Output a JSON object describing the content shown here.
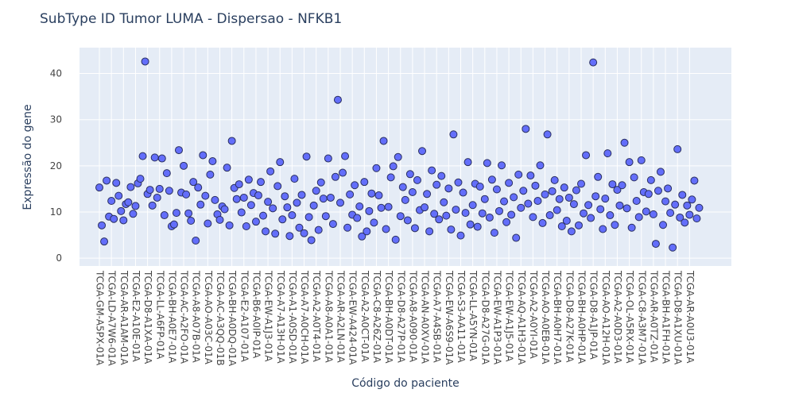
{
  "chart_data": {
    "type": "scatter",
    "title": "SubType ID Tumor LUMA - Dispersao - NFKB1",
    "x_label": "Código do paciente",
    "y_label": "Expressão do gene",
    "color": "#636efa",
    "grid": true,
    "ylim": [
      -1.7,
      45.6
    ],
    "yticks": [
      0,
      10,
      20,
      30,
      40
    ],
    "categories": [
      "TCGA-GM-A5PX-01A",
      null,
      null,
      null,
      null,
      "TCGA-LD-A7W6-01A",
      null,
      null,
      null,
      null,
      "TCGA-AR-A1AM-01A",
      null,
      null,
      null,
      null,
      "TCGA-E2-A10E-01A",
      null,
      null,
      null,
      null,
      "TCGA-D8-A1XA-01A",
      null,
      null,
      null,
      null,
      "TCGA-LL-A6FP-01A",
      null,
      null,
      null,
      null,
      "TCGA-BH-A0E7-01A",
      null,
      null,
      null,
      null,
      "TCGA-AC-A2FO-01A",
      null,
      null,
      null,
      null,
      "TCGA-A8-A07B-01A",
      null,
      null,
      null,
      null,
      "TCGA-AO-A03C-01A",
      null,
      null,
      null,
      null,
      "TCGA-AC-A3QQ-01B",
      null,
      null,
      null,
      null,
      "TCGA-BH-A0DQ-01A",
      null,
      null,
      null,
      null,
      "TCGA-E2-A107-01A",
      null,
      null,
      null,
      null,
      "TCGA-B6-A0IP-01A",
      null,
      null,
      null,
      null,
      "TCGA-EW-A1J3-01A",
      null,
      null,
      null,
      null,
      "TCGA-A7-A13H-01A",
      null,
      null,
      null,
      null,
      "TCGA-A1-A0SD-01A",
      null,
      null,
      null,
      null,
      "TCGA-A7-A0CH-01A",
      null,
      null,
      null,
      null,
      "TCGA-A2-A0T4-01A",
      null,
      null,
      null,
      null,
      "TCGA-A8-A0A1-01A",
      null,
      null,
      null,
      null,
      "TCGA-AR-A2LN-01A",
      null,
      null,
      null,
      null,
      "TCGA-EW-A424-01A",
      null,
      null,
      null,
      null,
      "TCGA-A2-A0CT-01A",
      null,
      null,
      null,
      null,
      "TCGA-C8-A26Z-01A",
      null,
      null,
      null,
      null,
      "TCGA-BH-A0DT-01A",
      null,
      null,
      null,
      null,
      "TCGA-D8-A27P-01A",
      null,
      null,
      null,
      null,
      "TCGA-A8-A090-01A",
      null,
      null,
      null,
      null,
      "TCGA-AN-A0XV-01A",
      null,
      null,
      null,
      null,
      "TCGA-A7-A4SB-01A",
      null,
      null,
      null,
      null,
      "TCGA-EW-A6S9-01A",
      null,
      null,
      null,
      null,
      "TCGA-S3-AA11-01A",
      null,
      null,
      null,
      null,
      "TCGA-LL-A5YN-01A",
      null,
      null,
      null,
      null,
      "TCGA-D8-A27G-01A",
      null,
      null,
      null,
      null,
      "TCGA-EW-A1P3-01A",
      null,
      null,
      null,
      null,
      "TCGA-EW-A1J5-01A",
      null,
      null,
      null,
      null,
      "TCGA-AQ-A1H3-01A",
      null,
      null,
      null,
      null,
      "TCGA-A2-A0YI-01A",
      null,
      null,
      null,
      null,
      "TCGA-AO-A0EB-01A",
      null,
      null,
      null,
      null,
      "TCGA-BH-A0H7-01A",
      null,
      null,
      null,
      null,
      "TCGA-D8-A27K-01A",
      null,
      null,
      null,
      null,
      "TCGA-BH-A0HP-01A",
      null,
      null,
      null,
      null,
      "TCGA-D8-A1JP-01A",
      null,
      null,
      null,
      null,
      "TCGA-AO-A12H-01A",
      null,
      null,
      null,
      null,
      "TCGA-A2-A0D3-01A",
      null,
      null,
      null,
      null,
      "TCGA-OL-A5RX-01A",
      null,
      null,
      null,
      null,
      "TCGA-C8-A3M7-01A",
      null,
      null,
      null,
      null,
      "TCGA-AR-A0TZ-01A",
      null,
      null,
      null,
      null,
      "TCGA-BH-A1FH-01A",
      null,
      null,
      null,
      null,
      "TCGA-D8-A1XU-01A",
      null,
      null,
      null,
      null,
      "TCGA-AR-A0U3-01A",
      null,
      null,
      null,
      null
    ],
    "values": [
      15.3,
      7.1,
      3.6,
      16.8,
      9,
      12.4,
      8.5,
      16.3,
      13.5,
      10.2,
      8.2,
      11.7,
      12.1,
      15.4,
      9.6,
      11.3,
      16.2,
      17.2,
      22.1,
      42.6,
      13.9,
      14.8,
      11.4,
      21.8,
      13.1,
      15,
      21.6,
      9.3,
      18.4,
      14.6,
      6.9,
      7.3,
      9.8,
      23.4,
      14.2,
      20,
      13.8,
      9.7,
      8.1,
      16.5,
      3.8,
      15.3,
      11.6,
      22.3,
      13.5,
      7.5,
      18.1,
      21,
      12.6,
      9.5,
      8.3,
      11.2,
      10.6,
      19.6,
      7.1,
      25.4,
      15.2,
      12.8,
      16,
      9.9,
      13.1,
      6.9,
      17,
      11.5,
      14.1,
      7.9,
      13.6,
      16.5,
      9.2,
      5.8,
      12.2,
      18.8,
      10.8,
      5.3,
      15.6,
      20.8,
      8.4,
      13.4,
      11,
      4.8,
      9.3,
      17.2,
      12,
      6.6,
      13.7,
      5.4,
      22,
      8.9,
      3.9,
      11.4,
      14.6,
      6.1,
      16.4,
      12.9,
      9.1,
      21.6,
      13.1,
      7.4,
      17.6,
      34.3,
      12,
      18.5,
      22.1,
      6.6,
      13.8,
      9.4,
      15.8,
      8.7,
      11.2,
      4.7,
      16.5,
      5.8,
      10.2,
      14,
      7.7,
      19.5,
      13.6,
      10.9,
      25.4,
      6.3,
      11.1,
      17.5,
      19.9,
      4,
      21.9,
      9.1,
      15.4,
      12.6,
      8.2,
      18.2,
      14.3,
      6.5,
      16.9,
      10.4,
      23.2,
      11,
      13.9,
      5.8,
      19,
      9.6,
      15.9,
      8.4,
      17.8,
      12.1,
      9.2,
      15.1,
      6.2,
      26.8,
      10.5,
      16.4,
      4.9,
      14.2,
      9.8,
      20.8,
      7.3,
      11.5,
      16.1,
      6.8,
      15.5,
      9.7,
      12.8,
      20.6,
      8.8,
      17,
      5.5,
      14.9,
      10.2,
      20.1,
      12.3,
      7.8,
      16.3,
      9.4,
      13.2,
      4.4,
      18.1,
      10.9,
      14.6,
      28,
      11.8,
      17.9,
      8.9,
      15.7,
      12.4,
      20.1,
      7.6,
      13.8,
      26.8,
      9.3,
      14.5,
      16.9,
      10.4,
      12.8,
      6.9,
      15.3,
      8.1,
      13.1,
      5.8,
      11.7,
      14.7,
      7.1,
      16.1,
      9.7,
      22.3,
      11.5,
      8.7,
      42.4,
      13.4,
      17.6,
      10.6,
      6.3,
      12.9,
      22.7,
      9.3,
      16,
      7.2,
      14.8,
      11.4,
      15.8,
      25,
      10.8,
      20.8,
      6.6,
      17.5,
      12.4,
      8.9,
      21.2,
      14.3,
      10.1,
      13.9,
      16.9,
      9.5,
      3.1,
      14.6,
      18.7,
      7.2,
      12.3,
      15.1,
      9.8,
      2.3,
      11.6,
      23.6,
      8.8,
      13.7,
      7.7,
      11.4,
      9.4,
      12.7,
      16.8,
      8.6,
      10.9
    ]
  }
}
